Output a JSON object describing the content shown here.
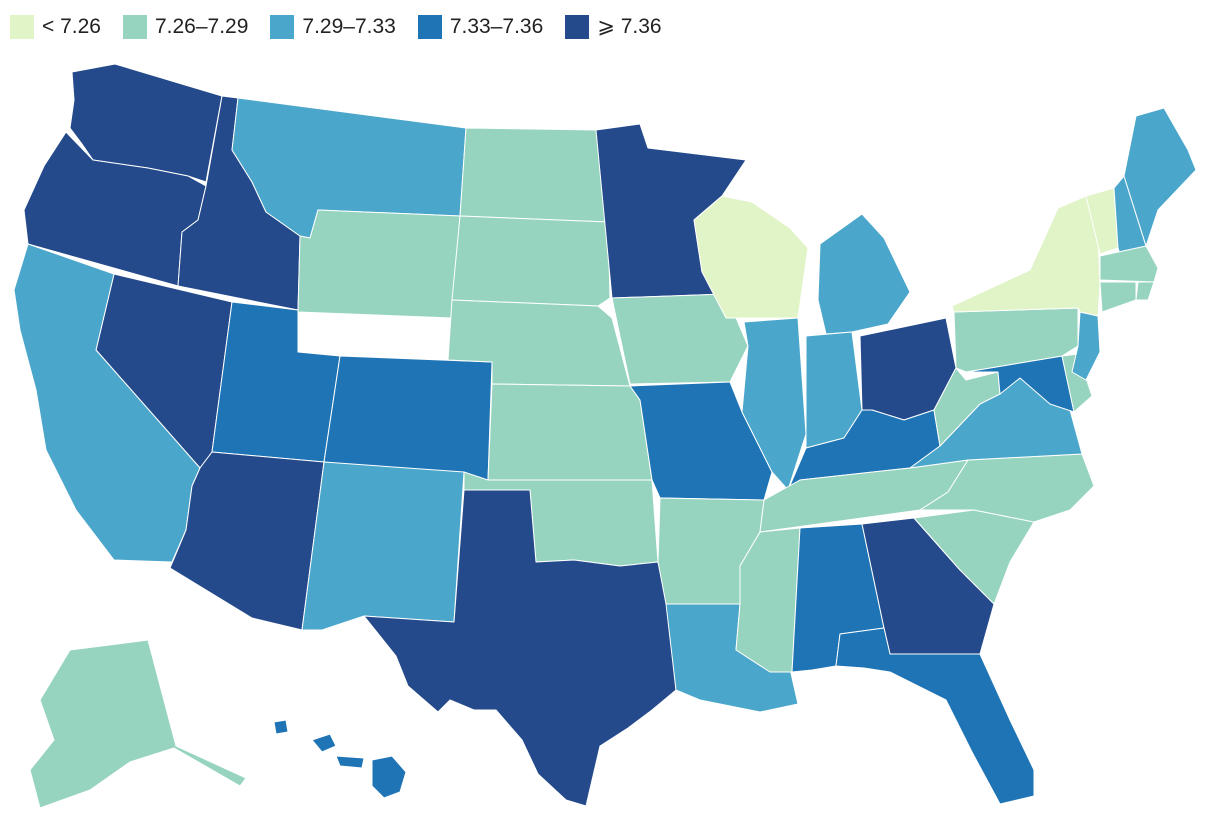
{
  "legend": {
    "items": [
      {
        "label": "< 7.26",
        "color": "#e1f4c7"
      },
      {
        "label": "7.26–7.29",
        "color": "#96d4c0"
      },
      {
        "label": "7.29–7.33",
        "color": "#4ba6cb"
      },
      {
        "label": "7.33–7.36",
        "color": "#1e74b4"
      },
      {
        "label": "⩾ 7.36",
        "color": "#244a8b"
      }
    ]
  },
  "chart_data": {
    "type": "choropleth",
    "region": "United States",
    "bins": [
      {
        "label": "< 7.26",
        "class": 0
      },
      {
        "label": "7.26–7.29",
        "class": 1
      },
      {
        "label": "7.29–7.33",
        "class": 2
      },
      {
        "label": "7.33–7.36",
        "class": 3
      },
      {
        "label": "⩾ 7.36",
        "class": 4
      }
    ],
    "states": [
      {
        "state": "Washington",
        "class": 4
      },
      {
        "state": "Oregon",
        "class": 4
      },
      {
        "state": "Idaho",
        "class": 4
      },
      {
        "state": "Nevada",
        "class": 4
      },
      {
        "state": "California",
        "class": 2
      },
      {
        "state": "Montana",
        "class": 2
      },
      {
        "state": "Wyoming",
        "class": 1
      },
      {
        "state": "Utah",
        "class": 3
      },
      {
        "state": "Arizona",
        "class": 4
      },
      {
        "state": "Colorado",
        "class": 3
      },
      {
        "state": "New Mexico",
        "class": 2
      },
      {
        "state": "North Dakota",
        "class": 1
      },
      {
        "state": "South Dakota",
        "class": 1
      },
      {
        "state": "Nebraska",
        "class": 1
      },
      {
        "state": "Kansas",
        "class": 1
      },
      {
        "state": "Oklahoma",
        "class": 1
      },
      {
        "state": "Texas",
        "class": 4
      },
      {
        "state": "Minnesota",
        "class": 4
      },
      {
        "state": "Iowa",
        "class": 1
      },
      {
        "state": "Missouri",
        "class": 3
      },
      {
        "state": "Arkansas",
        "class": 1
      },
      {
        "state": "Louisiana",
        "class": 2
      },
      {
        "state": "Wisconsin",
        "class": 0
      },
      {
        "state": "Illinois",
        "class": 2
      },
      {
        "state": "Michigan",
        "class": 2
      },
      {
        "state": "Indiana",
        "class": 2
      },
      {
        "state": "Ohio",
        "class": 4
      },
      {
        "state": "Kentucky",
        "class": 3
      },
      {
        "state": "Tennessee",
        "class": 1
      },
      {
        "state": "Mississippi",
        "class": 1
      },
      {
        "state": "Alabama",
        "class": 3
      },
      {
        "state": "Georgia",
        "class": 4
      },
      {
        "state": "Florida",
        "class": 3
      },
      {
        "state": "South Carolina",
        "class": 1
      },
      {
        "state": "North Carolina",
        "class": 1
      },
      {
        "state": "Virginia",
        "class": 2
      },
      {
        "state": "West Virginia",
        "class": 1
      },
      {
        "state": "Maryland",
        "class": 3
      },
      {
        "state": "Delaware",
        "class": 1
      },
      {
        "state": "New Jersey",
        "class": 2
      },
      {
        "state": "Pennsylvania",
        "class": 1
      },
      {
        "state": "New York",
        "class": 0
      },
      {
        "state": "Vermont",
        "class": 0
      },
      {
        "state": "New Hampshire",
        "class": 2
      },
      {
        "state": "Maine",
        "class": 2
      },
      {
        "state": "Massachusetts",
        "class": 1
      },
      {
        "state": "Rhode Island",
        "class": 1
      },
      {
        "state": "Connecticut",
        "class": 1
      },
      {
        "state": "Alaska",
        "class": 1
      },
      {
        "state": "Hawaii",
        "class": 3
      }
    ]
  }
}
